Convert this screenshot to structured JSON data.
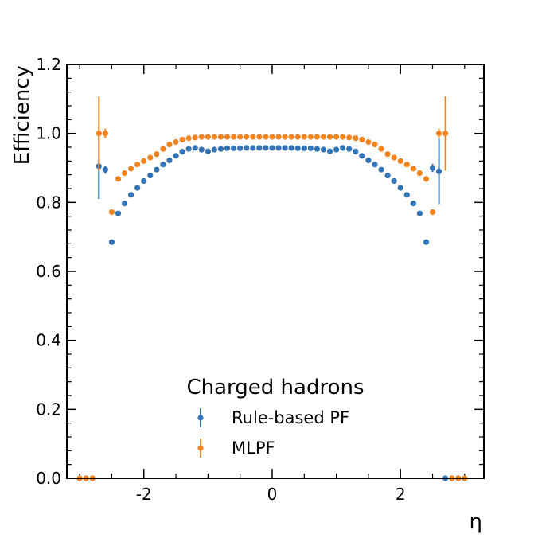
{
  "chart_data": {
    "type": "scatter",
    "xlabel": "η",
    "ylabel": "Efficiency",
    "xlim": [
      -3.2,
      3.3
    ],
    "ylim": [
      0.0,
      1.2
    ],
    "x_ticks": [
      {
        "value": -2,
        "label": "-2"
      },
      {
        "value": 0,
        "label": "0"
      },
      {
        "value": 2,
        "label": "2"
      }
    ],
    "y_ticks": [
      {
        "value": 0.0,
        "label": "0.0"
      },
      {
        "value": 0.2,
        "label": "0.2"
      },
      {
        "value": 0.4,
        "label": "0.4"
      },
      {
        "value": 0.6,
        "label": "0.6"
      },
      {
        "value": 0.8,
        "label": "0.8"
      },
      {
        "value": 1.0,
        "label": "1.0"
      },
      {
        "value": 1.2,
        "label": "1.2"
      }
    ],
    "grid": false,
    "legend": {
      "title": "Charged hadrons",
      "placement": "bottom-center"
    },
    "x": [
      -3.0,
      -2.9,
      -2.8,
      -2.7,
      -2.6,
      -2.5,
      -2.4,
      -2.3,
      -2.2,
      -2.1,
      -2.0,
      -1.9,
      -1.8,
      -1.7,
      -1.6,
      -1.5,
      -1.4,
      -1.3,
      -1.2,
      -1.1,
      -1.0,
      -0.9,
      -0.8,
      -0.7,
      -0.6,
      -0.5,
      -0.4,
      -0.3,
      -0.2,
      -0.1,
      0.0,
      0.1,
      0.2,
      0.3,
      0.4,
      0.5,
      0.6,
      0.7,
      0.8,
      0.9,
      1.0,
      1.1,
      1.2,
      1.3,
      1.4,
      1.5,
      1.6,
      1.7,
      1.8,
      1.9,
      2.0,
      2.1,
      2.2,
      2.3,
      2.4,
      2.5,
      2.6,
      2.7,
      2.8,
      2.9,
      3.0
    ],
    "series": [
      {
        "name": "Rule-based PF",
        "color": "#3274b5",
        "values": [
          0.0,
          0.0,
          0.0,
          0.905,
          0.895,
          0.685,
          0.768,
          0.797,
          0.822,
          0.842,
          0.862,
          0.878,
          0.895,
          0.91,
          0.922,
          0.935,
          0.947,
          0.955,
          0.958,
          0.953,
          0.948,
          0.953,
          0.955,
          0.957,
          0.957,
          0.957,
          0.958,
          0.958,
          0.958,
          0.958,
          0.958,
          0.958,
          0.958,
          0.958,
          0.957,
          0.957,
          0.957,
          0.955,
          0.953,
          0.948,
          0.953,
          0.958,
          0.955,
          0.947,
          0.935,
          0.922,
          0.91,
          0.895,
          0.878,
          0.862,
          0.842,
          0.822,
          0.797,
          0.768,
          0.685,
          0.9,
          0.89,
          0.0,
          0.0,
          0.0,
          0.0
        ],
        "errors": [
          0.0,
          0.0,
          0.0,
          0.095,
          0.012,
          0.0,
          0.0,
          0.0,
          0.0,
          0.0,
          0.0,
          0.0,
          0.0,
          0.0,
          0.0,
          0.0,
          0.0,
          0.0,
          0.0,
          0.0,
          0.0,
          0.0,
          0.0,
          0.0,
          0.0,
          0.0,
          0.0,
          0.0,
          0.0,
          0.0,
          0.0,
          0.0,
          0.0,
          0.0,
          0.0,
          0.0,
          0.0,
          0.0,
          0.0,
          0.0,
          0.0,
          0.0,
          0.0,
          0.0,
          0.0,
          0.0,
          0.0,
          0.0,
          0.0,
          0.0,
          0.0,
          0.0,
          0.0,
          0.0,
          0.0,
          0.012,
          0.095,
          0.0,
          0.0,
          0.0,
          0.0
        ]
      },
      {
        "name": "MLPF",
        "color": "#f5841f",
        "values": [
          0.0,
          0.0,
          0.0,
          1.0,
          1.0,
          0.772,
          0.868,
          0.885,
          0.898,
          0.91,
          0.92,
          0.93,
          0.94,
          0.955,
          0.968,
          0.975,
          0.982,
          0.986,
          0.988,
          0.99,
          0.99,
          0.99,
          0.99,
          0.99,
          0.99,
          0.99,
          0.99,
          0.99,
          0.99,
          0.99,
          0.99,
          0.99,
          0.99,
          0.99,
          0.99,
          0.99,
          0.99,
          0.99,
          0.99,
          0.99,
          0.99,
          0.99,
          0.988,
          0.986,
          0.982,
          0.975,
          0.968,
          0.955,
          0.94,
          0.93,
          0.92,
          0.91,
          0.898,
          0.885,
          0.868,
          0.772,
          1.0,
          1.0,
          0.0,
          0.0,
          0.0
        ],
        "errors": [
          0.0,
          0.0,
          0.0,
          0.108,
          0.014,
          0.0,
          0.0,
          0.0,
          0.0,
          0.0,
          0.0,
          0.0,
          0.0,
          0.0,
          0.0,
          0.0,
          0.0,
          0.0,
          0.0,
          0.0,
          0.0,
          0.0,
          0.0,
          0.0,
          0.0,
          0.0,
          0.0,
          0.0,
          0.0,
          0.0,
          0.0,
          0.0,
          0.0,
          0.0,
          0.0,
          0.0,
          0.0,
          0.0,
          0.0,
          0.0,
          0.0,
          0.0,
          0.0,
          0.0,
          0.0,
          0.0,
          0.0,
          0.0,
          0.0,
          0.0,
          0.0,
          0.0,
          0.0,
          0.0,
          0.0,
          0.0,
          0.014,
          0.108,
          0.0,
          0.0,
          0.0
        ]
      }
    ]
  }
}
